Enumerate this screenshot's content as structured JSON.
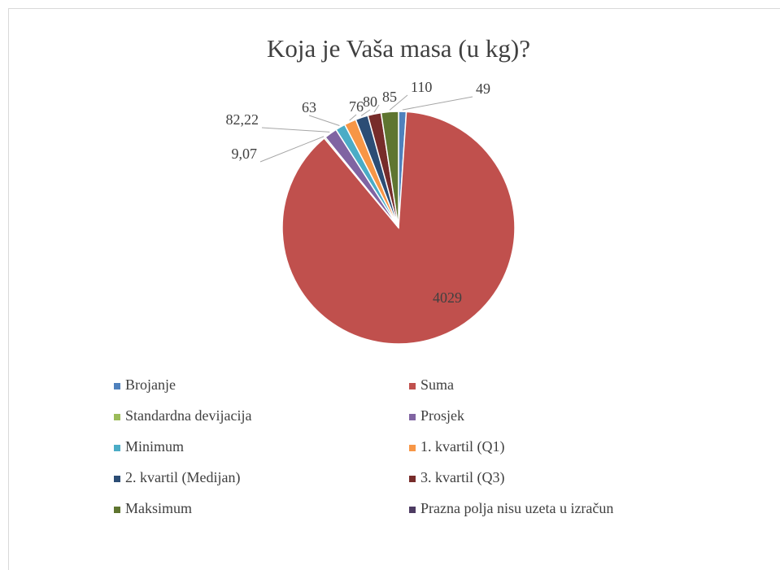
{
  "chart_data": {
    "type": "pie",
    "title": "Koja je Vaša masa (u kg)?",
    "categories": [
      "Brojanje",
      "Suma",
      "Standardna devijacija",
      "Prosjek",
      "Minimum",
      "1. kvartil (Q1)",
      "2. kvartil (Medijan)",
      "3. kvartil (Q3)",
      "Maksimum",
      "Prazna polja nisu uzeta u izračun"
    ],
    "values": [
      49,
      4029,
      9.07,
      82.22,
      63,
      76,
      80,
      85,
      110,
      null
    ],
    "value_labels": [
      "49",
      "4029",
      "9,07",
      "82,22",
      "63",
      "76",
      "80",
      "85",
      "110",
      null
    ],
    "colors": [
      "#4f81bd",
      "#c0504d",
      "#9bbb59",
      "#8064a2",
      "#4bacc6",
      "#f79646",
      "#2c4d75",
      "#772c2a",
      "#5f7530",
      "#4d3b62"
    ],
    "legend": "bottom"
  }
}
